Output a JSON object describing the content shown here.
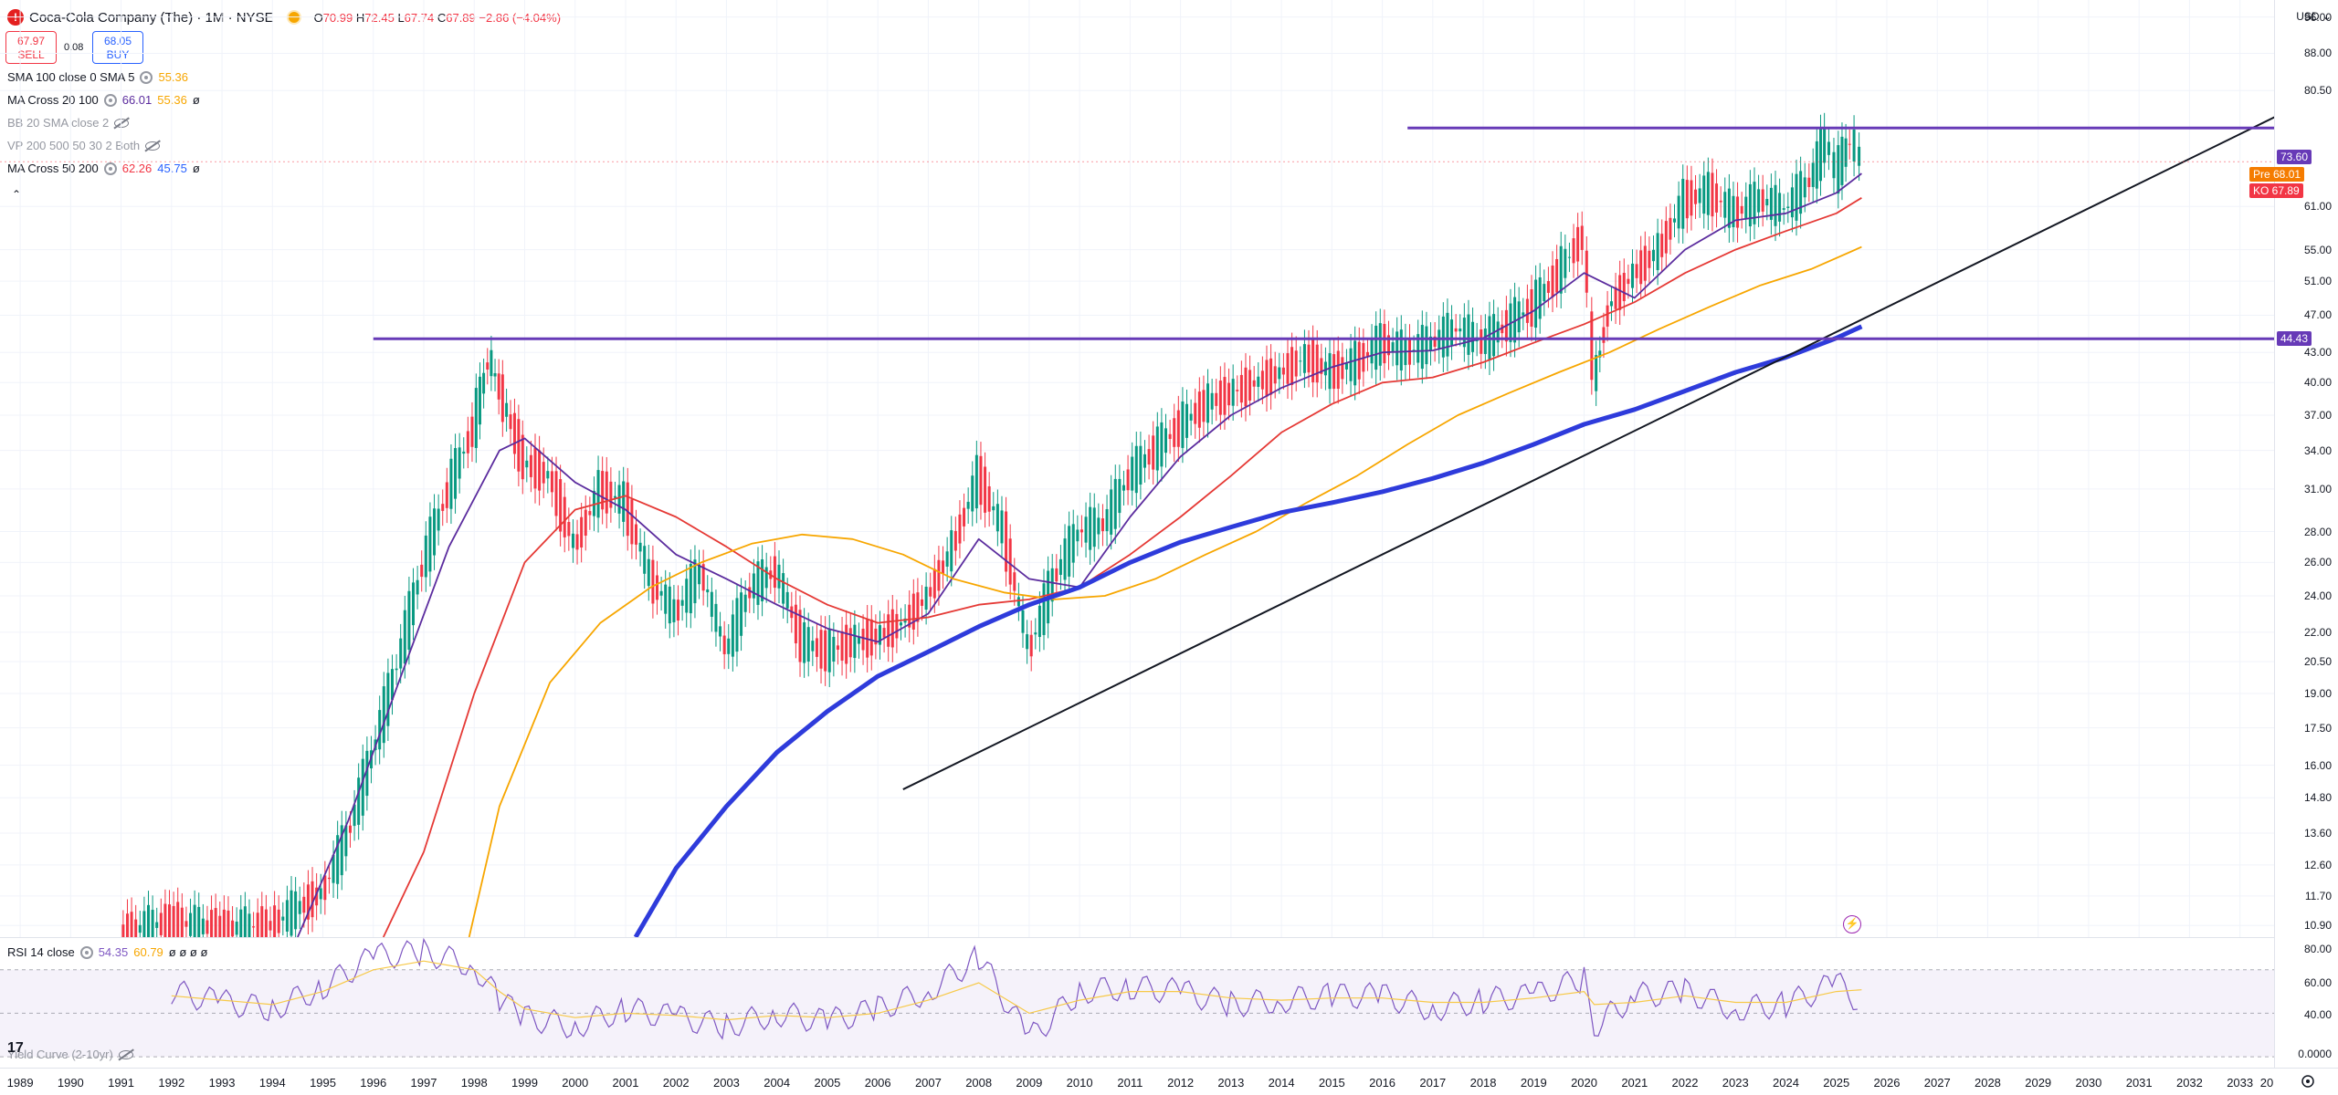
{
  "header": {
    "logo_letter": "!",
    "title": "Coca-Cola Company (The) · 1M · NYSE",
    "open_k": "O",
    "open": "70.99",
    "high_k": "H",
    "high": "72.45",
    "low_k": "L",
    "low": "67.74",
    "close_k": "C",
    "close": "67.89",
    "change": "−2.86 (−4.04%)"
  },
  "trade": {
    "sell_price": "67.97",
    "sell_label": "SELL",
    "spread": "0.08",
    "buy_price": "68.05",
    "buy_label": "BUY"
  },
  "indicators": [
    {
      "name": "SMA 100 close 0 SMA 5",
      "values": [
        {
          "v": "55.36",
          "color": "#f7a600"
        }
      ],
      "dim": false
    },
    {
      "name": "MA Cross 20 100",
      "values": [
        {
          "v": "66.01",
          "color": "#5b2c9e"
        },
        {
          "v": "55.36",
          "color": "#f7a600"
        },
        {
          "v": "ø",
          "color": "#131722"
        }
      ],
      "dim": false
    },
    {
      "name": "BB 20 SMA close 2",
      "values": [],
      "dim": true,
      "hidden": true
    },
    {
      "name": "VP 200 500 50 30 2 Both",
      "values": [],
      "dim": true,
      "hidden": true
    },
    {
      "name": "MA Cross 50 200",
      "values": [
        {
          "v": "62.26",
          "color": "#f23645"
        },
        {
          "v": "45.75",
          "color": "#2962ff"
        },
        {
          "v": "ø",
          "color": "#131722"
        }
      ],
      "dim": false
    }
  ],
  "rsi_legend": {
    "name": "RSI 14 close",
    "value1": "54.35",
    "value2": "60.79",
    "extra": "ø ø ø ø"
  },
  "yield_legend": {
    "name": "Yield Curve (2-10yr)"
  },
  "price_axis": {
    "currency": "USD",
    "ticks": [
      "96.00",
      "88.00",
      "80.50",
      "61.00",
      "55.00",
      "51.00",
      "47.00",
      "43.00",
      "40.00",
      "37.00",
      "34.00",
      "31.00",
      "28.00",
      "26.00",
      "24.00",
      "22.00",
      "20.50",
      "19.00",
      "17.50",
      "16.00",
      "14.80",
      "13.60",
      "12.60",
      "11.70",
      "10.90"
    ],
    "tags": [
      {
        "label": "73.60",
        "color": "#673ab7"
      },
      {
        "label": "Pre",
        "value": "68.01",
        "color": "#f57c00"
      },
      {
        "label": "KO",
        "value": "67.89",
        "color": "#f23645"
      },
      {
        "label": "44.43",
        "color": "#673ab7"
      }
    ]
  },
  "rsi_axis": {
    "ticks": [
      "80.00",
      "60.00",
      "40.00",
      "0.0000"
    ]
  },
  "time_axis": {
    "years": [
      "1989",
      "1990",
      "1991",
      "1992",
      "1993",
      "1994",
      "1995",
      "1996",
      "1997",
      "1998",
      "1999",
      "2000",
      "2001",
      "2002",
      "2003",
      "2004",
      "2005",
      "2006",
      "2007",
      "2008",
      "2009",
      "2010",
      "2011",
      "2012",
      "2013",
      "2014",
      "2015",
      "2016",
      "2017",
      "2018",
      "2019",
      "2020",
      "2021",
      "2022",
      "2023",
      "2024",
      "2025",
      "2026",
      "2027",
      "2028",
      "2029",
      "2030",
      "2031",
      "2032",
      "2033",
      "20"
    ]
  },
  "chart_data": {
    "type": "line",
    "scale": "log",
    "ylim": [
      10.6,
      100
    ],
    "x_range": [
      1988.6,
      2034.4
    ],
    "price_series": {
      "name": "KO",
      "x": [
        1991.0,
        1992.0,
        1993.0,
        1994.0,
        1995.0,
        1995.5,
        1996.0,
        1996.5,
        1997.0,
        1997.5,
        1998.0,
        1998.3,
        1998.6,
        1999.0,
        1999.5,
        2000.0,
        2000.5,
        2001.0,
        2001.5,
        2002.0,
        2002.5,
        2003.0,
        2003.5,
        2004.0,
        2004.5,
        2005.0,
        2005.5,
        2006.0,
        2006.5,
        2007.0,
        2007.5,
        2008.0,
        2008.5,
        2009.0,
        2009.5,
        2010.0,
        2010.5,
        2011.0,
        2011.5,
        2012.0,
        2012.5,
        2013.0,
        2013.5,
        2014.0,
        2014.5,
        2015.0,
        2015.5,
        2016.0,
        2016.5,
        2017.0,
        2017.5,
        2018.0,
        2018.5,
        2019.0,
        2019.5,
        2020.0,
        2020.2,
        2020.5,
        2021.0,
        2021.5,
        2022.0,
        2022.5,
        2023.0,
        2023.5,
        2024.0,
        2024.5,
        2024.8,
        2025.0,
        2025.3,
        2025.5
      ],
      "values": [
        10.7,
        11.0,
        10.8,
        10.9,
        11.8,
        13.5,
        16.5,
        20.5,
        26.0,
        31.0,
        36.0,
        42.5,
        38.0,
        33.0,
        32.0,
        27.0,
        31.0,
        30.0,
        25.0,
        23.0,
        25.5,
        21.0,
        24.5,
        25.5,
        21.5,
        21.0,
        21.5,
        21.8,
        22.5,
        24.0,
        27.0,
        32.0,
        28.0,
        21.0,
        25.0,
        28.0,
        28.5,
        32.0,
        34.0,
        36.0,
        38.0,
        39.0,
        40.0,
        41.0,
        42.5,
        41.0,
        42.0,
        44.0,
        43.0,
        44.0,
        45.5,
        44.0,
        46.0,
        48.0,
        52.0,
        57.0,
        40.0,
        48.0,
        52.0,
        55.0,
        62.0,
        63.0,
        60.0,
        62.0,
        60.5,
        65.0,
        71.5,
        66.0,
        71.5,
        67.89
      ]
    },
    "ma_series": [
      {
        "name": "MA 20",
        "color": "#5b2c9e",
        "x": [
          1994.5,
          1995.5,
          1996.5,
          1997.5,
          1998.5,
          1999.0,
          2000.0,
          2001.0,
          2002.0,
          2003.0,
          2004.0,
          2005.0,
          2006.0,
          2007.0,
          2008.0,
          2009.0,
          2010.0,
          2011.0,
          2012.0,
          2013.0,
          2014.0,
          2015.0,
          2016.0,
          2017.0,
          2018.0,
          2019.0,
          2020.0,
          2021.0,
          2022.0,
          2023.0,
          2024.0,
          2025.0,
          2025.5
        ],
        "values": [
          10.6,
          14.0,
          19.5,
          27.0,
          34.0,
          35.0,
          31.5,
          29.5,
          26.5,
          25.0,
          23.5,
          22.2,
          21.5,
          23.0,
          27.5,
          25.0,
          24.5,
          29.0,
          33.5,
          37.0,
          39.5,
          41.5,
          43.0,
          43.2,
          44.5,
          47.5,
          52.0,
          49.0,
          55.0,
          59.0,
          60.0,
          63.0,
          66.01
        ]
      },
      {
        "name": "MA 50",
        "color": "#e53935",
        "x": [
          1996.2,
          1997.0,
          1998.0,
          1999.0,
          2000.0,
          2001.0,
          2002.0,
          2003.0,
          2004.0,
          2005.0,
          2006.0,
          2007.0,
          2008.0,
          2009.0,
          2010.0,
          2011.0,
          2012.0,
          2013.0,
          2014.0,
          2015.0,
          2016.0,
          2017.0,
          2018.0,
          2019.0,
          2020.0,
          2021.0,
          2022.0,
          2023.0,
          2024.0,
          2025.0,
          2025.5
        ],
        "values": [
          10.6,
          13.0,
          19.0,
          26.0,
          29.5,
          30.5,
          29.0,
          27.0,
          25.0,
          23.5,
          22.5,
          22.8,
          23.5,
          23.8,
          24.5,
          26.5,
          29.0,
          32.0,
          35.5,
          38.0,
          40.0,
          40.5,
          42.0,
          44.0,
          46.0,
          48.5,
          52.0,
          55.0,
          57.5,
          60.0,
          62.26
        ]
      },
      {
        "name": "SMA 100",
        "color": "#f7a600",
        "x": [
          1997.9,
          1998.5,
          1999.5,
          2000.5,
          2001.5,
          2002.5,
          2003.5,
          2004.5,
          2005.5,
          2006.5,
          2007.5,
          2008.5,
          2009.5,
          2010.5,
          2011.5,
          2012.5,
          2013.5,
          2014.5,
          2015.5,
          2016.5,
          2017.5,
          2018.5,
          2019.5,
          2020.5,
          2021.5,
          2022.5,
          2023.5,
          2024.5,
          2025.5
        ],
        "values": [
          10.6,
          14.5,
          19.5,
          22.5,
          24.5,
          26.0,
          27.2,
          27.8,
          27.5,
          26.5,
          25.0,
          24.2,
          23.8,
          24.0,
          25.0,
          26.5,
          28.0,
          30.0,
          32.0,
          34.5,
          37.0,
          39.0,
          41.0,
          43.0,
          45.5,
          48.0,
          50.5,
          52.5,
          55.36
        ]
      },
      {
        "name": "MA 200",
        "color": "#2e3bdb",
        "width": 5,
        "x": [
          2001.2,
          2002.0,
          2003.0,
          2004.0,
          2005.0,
          2006.0,
          2007.0,
          2008.0,
          2009.0,
          2010.0,
          2011.0,
          2012.0,
          2013.0,
          2014.0,
          2015.0,
          2016.0,
          2017.0,
          2018.0,
          2019.0,
          2020.0,
          2021.0,
          2022.0,
          2023.0,
          2024.0,
          2025.0,
          2025.5
        ],
        "values": [
          10.6,
          12.5,
          14.5,
          16.5,
          18.2,
          19.8,
          21.0,
          22.3,
          23.5,
          24.5,
          26.0,
          27.3,
          28.3,
          29.3,
          30.0,
          30.8,
          31.8,
          33.0,
          34.5,
          36.2,
          37.5,
          39.2,
          41.0,
          42.5,
          44.5,
          45.75
        ]
      }
    ],
    "trendline": {
      "x": [
        2006.5,
        2033.9
      ],
      "values": [
        15.1,
        76.5
      ]
    },
    "levels": [
      {
        "value": 73.6,
        "x_start": 2016.5,
        "label": "73.60"
      },
      {
        "value": 44.43,
        "x_start": 1996.0,
        "label": "44.43"
      }
    ],
    "rsi": {
      "ylim": [
        25,
        85
      ],
      "x": [
        1992.0,
        1993.0,
        1994.0,
        1995.0,
        1996.0,
        1997.0,
        1998.0,
        1998.5,
        1999.0,
        2000.0,
        2001.0,
        2002.0,
        2003.0,
        2004.0,
        2005.0,
        2006.0,
        2007.0,
        2008.0,
        2009.0,
        2010.0,
        2011.0,
        2012.0,
        2013.0,
        2014.0,
        2015.0,
        2016.0,
        2017.0,
        2018.0,
        2019.0,
        2020.0,
        2020.2,
        2021.0,
        2022.0,
        2023.0,
        2024.0,
        2025.0,
        2025.5
      ],
      "values": [
        60,
        55,
        52,
        62,
        76,
        78,
        72,
        56,
        48,
        44,
        52,
        48,
        44,
        50,
        46,
        52,
        60,
        76,
        38,
        60,
        62,
        60,
        54,
        56,
        58,
        58,
        52,
        56,
        58,
        66,
        44,
        58,
        60,
        52,
        54,
        64,
        54.35
      ],
      "signal_values": [
        58,
        56,
        54,
        60,
        70,
        74,
        70,
        60,
        52,
        48,
        50,
        49,
        47,
        49,
        48,
        50,
        56,
        64,
        50,
        56,
        60,
        60,
        57,
        56,
        57,
        57,
        55,
        55,
        57,
        60,
        54,
        55,
        58,
        55,
        55,
        60,
        60.79
      ]
    }
  }
}
